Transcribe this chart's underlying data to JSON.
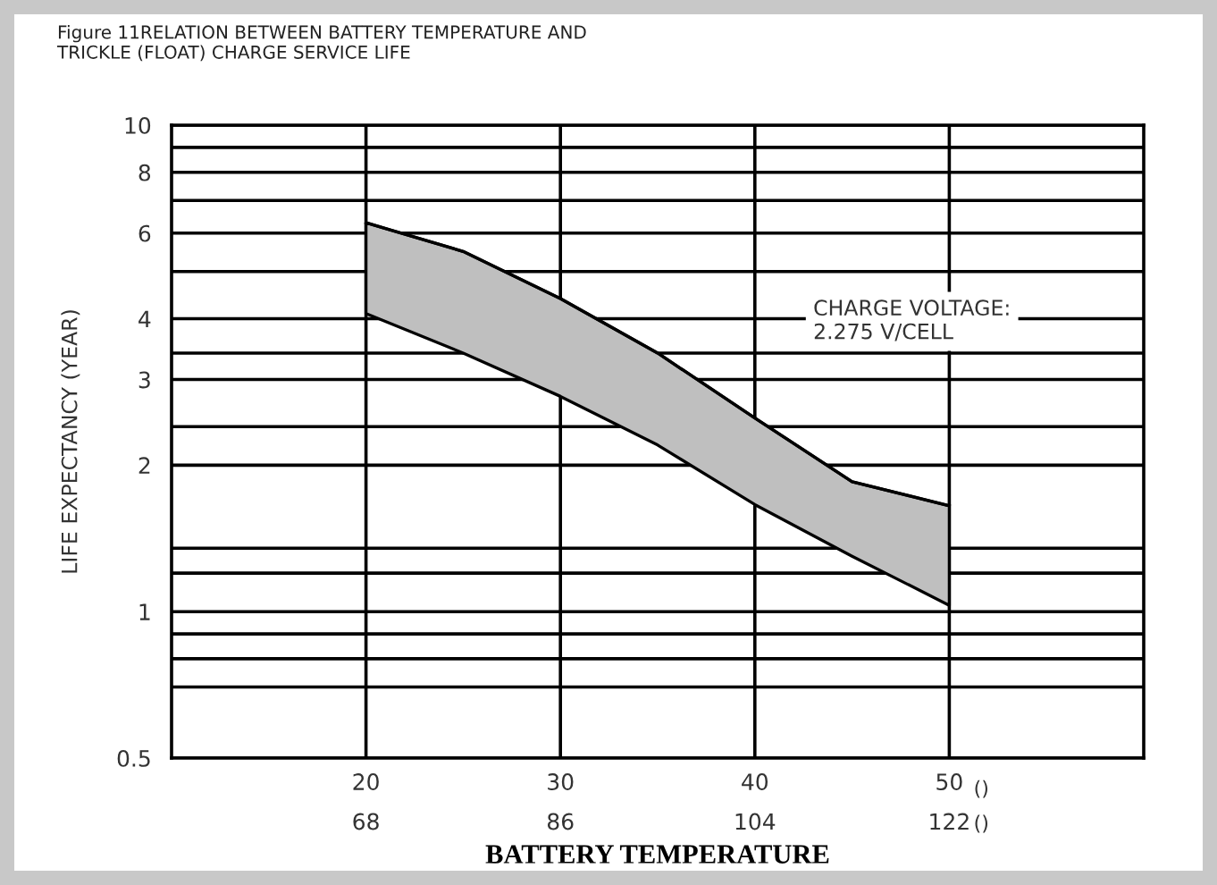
{
  "chart_data": {
    "type": "line",
    "title": "Figure 11RELATION BETWEEN BATTERY TEMPERATURE AND\nTRICKLE (FLOAT) CHARGE SERVICE LIFE",
    "xlabel": "BATTERY TEMPERATURE",
    "ylabel": "LIFE EXPECTANCY (YEAR)",
    "log": "y",
    "grid": true,
    "xlim": [
      10,
      60
    ],
    "xticks": [
      20,
      30,
      40,
      50
    ],
    "x2lim": [
      50,
      140
    ],
    "x2ticks": [
      68,
      86,
      104,
      122
    ],
    "ylim": [
      0.5,
      10
    ],
    "yticks": [
      0.5,
      {
        "value": 0.7,
        "label": null
      },
      {
        "value": 0.8,
        "label": null
      },
      {
        "value": 0.9,
        "label": null
      },
      1,
      {
        "value": 1.2,
        "label": null
      },
      {
        "value": 1.35,
        "label": null
      },
      2,
      {
        "value": 2.4,
        "label": null
      },
      3,
      {
        "value": 3.4,
        "label": null
      },
      4,
      {
        "value": 5,
        "label": null
      },
      6,
      {
        "value": 7,
        "label": null
      },
      8,
      {
        "value": 9,
        "label": null
      },
      10
    ],
    "series": [
      {
        "color": "#000000",
        "x": [
          20,
          25,
          30,
          35,
          40,
          45,
          50
        ],
        "values": [
          6.3,
          5.5,
          4.4,
          3.4,
          2.5,
          1.85,
          1.65
        ],
        "lower": [
          4.1,
          3.4,
          2.77,
          2.2,
          1.66,
          1.3,
          1.03
        ],
        "upper": [
          6.3,
          5.5,
          4.4,
          3.4,
          2.5,
          1.85,
          1.65
        ]
      }
    ],
    "annotations": [
      "CHARGE VOLTAGE:\n2.275 V/CELL",
      "()",
      "()"
    ]
  }
}
